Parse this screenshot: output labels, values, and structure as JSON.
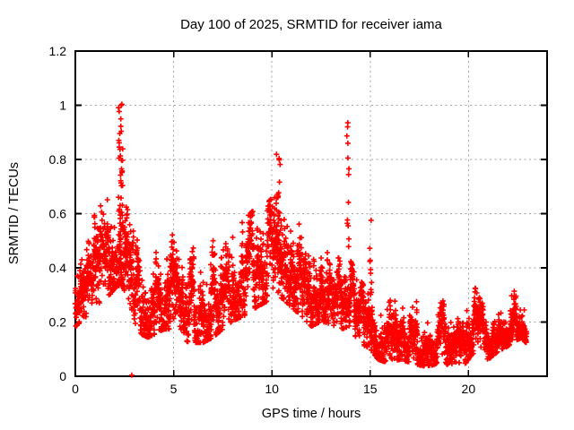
{
  "page": {
    "background": "#ffffff"
  },
  "chart_data": {
    "type": "scatter",
    "title": "Day 100 of 2025, SRMTID for receiver iama",
    "xlabel": "GPS time / hours",
    "ylabel": "SRMTID / TECUs",
    "xlim": [
      0,
      24
    ],
    "ylim": [
      0,
      1.2
    ],
    "xticks": [
      {
        "v": 0,
        "label": "0"
      },
      {
        "v": 5,
        "label": "5"
      },
      {
        "v": 10,
        "label": "10"
      },
      {
        "v": 15,
        "label": "15"
      },
      {
        "v": 20,
        "label": "20"
      }
    ],
    "yticks": [
      {
        "v": 0,
        "label": "0"
      },
      {
        "v": 0.2,
        "label": "0.2"
      },
      {
        "v": 0.4,
        "label": "0.4"
      },
      {
        "v": 0.6,
        "label": "0.6"
      },
      {
        "v": 0.8,
        "label": "0.8"
      },
      {
        "v": 1,
        "label": "1"
      },
      {
        "v": 1.2,
        "label": "1.2"
      }
    ],
    "grid": true,
    "legend": "none",
    "series_name": "SRMTID",
    "marker": {
      "shape": "plus",
      "color": "#ff0000",
      "size": 6,
      "stroke_width": 1.6
    },
    "frame_color": "#000000",
    "grid_color": "#a3a3a3",
    "envelope_points": [
      [
        0.0,
        0.18,
        0.45
      ],
      [
        0.3,
        0.2,
        0.42
      ],
      [
        0.6,
        0.22,
        0.5
      ],
      [
        1.0,
        0.25,
        0.6
      ],
      [
        1.4,
        0.28,
        0.64
      ],
      [
        1.8,
        0.3,
        0.66
      ],
      [
        2.1,
        0.33,
        0.63
      ],
      [
        2.4,
        0.33,
        0.63
      ],
      [
        2.8,
        0.26,
        0.67
      ],
      [
        3.1,
        0.18,
        0.55
      ],
      [
        3.4,
        0.15,
        0.48
      ],
      [
        3.7,
        0.14,
        0.43
      ],
      [
        4.0,
        0.15,
        0.45
      ],
      [
        4.5,
        0.17,
        0.48
      ],
      [
        5.0,
        0.17,
        0.5
      ],
      [
        5.4,
        0.14,
        0.4
      ],
      [
        5.8,
        0.12,
        0.42
      ],
      [
        6.1,
        0.12,
        0.5
      ],
      [
        6.5,
        0.12,
        0.46
      ],
      [
        7.0,
        0.14,
        0.5
      ],
      [
        7.5,
        0.17,
        0.52
      ],
      [
        8.0,
        0.2,
        0.55
      ],
      [
        8.6,
        0.22,
        0.58
      ],
      [
        9.2,
        0.25,
        0.62
      ],
      [
        9.7,
        0.27,
        0.64
      ],
      [
        10.1,
        0.3,
        0.66
      ],
      [
        10.6,
        0.28,
        0.65
      ],
      [
        11.0,
        0.25,
        0.6
      ],
      [
        11.5,
        0.22,
        0.55
      ],
      [
        12.0,
        0.18,
        0.5
      ],
      [
        12.5,
        0.2,
        0.48
      ],
      [
        13.0,
        0.19,
        0.46
      ],
      [
        13.5,
        0.17,
        0.43
      ],
      [
        13.9,
        0.18,
        0.44
      ],
      [
        14.3,
        0.14,
        0.38
      ],
      [
        14.7,
        0.11,
        0.33
      ],
      [
        15.0,
        0.1,
        0.35
      ],
      [
        15.4,
        0.06,
        0.28
      ],
      [
        15.8,
        0.05,
        0.25
      ],
      [
        16.1,
        0.05,
        0.29
      ],
      [
        16.5,
        0.06,
        0.27
      ],
      [
        17.0,
        0.05,
        0.24
      ],
      [
        17.4,
        0.04,
        0.28
      ],
      [
        17.8,
        0.035,
        0.22
      ],
      [
        18.2,
        0.04,
        0.18
      ],
      [
        18.5,
        0.05,
        0.33
      ],
      [
        19.0,
        0.04,
        0.2
      ],
      [
        19.4,
        0.05,
        0.24
      ],
      [
        19.8,
        0.04,
        0.2
      ],
      [
        20.2,
        0.08,
        0.35
      ],
      [
        20.5,
        0.08,
        0.3
      ],
      [
        21.0,
        0.06,
        0.22
      ],
      [
        21.5,
        0.09,
        0.25
      ],
      [
        22.0,
        0.11,
        0.28
      ],
      [
        22.4,
        0.13,
        0.32
      ],
      [
        22.7,
        0.14,
        0.33
      ],
      [
        22.95,
        0.12,
        0.28
      ]
    ],
    "spike_columns": [
      [
        2.3,
        0.1,
        0.45,
        1.01,
        34
      ],
      [
        2.38,
        0.04,
        0.5,
        0.88,
        8
      ],
      [
        4.95,
        0.05,
        0.25,
        0.53,
        10
      ],
      [
        10.32,
        0.1,
        0.42,
        0.82,
        20
      ],
      [
        13.87,
        0.05,
        0.44,
        0.95,
        14
      ],
      [
        15.02,
        0.05,
        0.28,
        0.585,
        9
      ]
    ],
    "special_points": [
      [
        2.87,
        0.004
      ]
    ],
    "gen": {
      "seed": 7,
      "t_start": 0,
      "t_end": 22.95,
      "step": 0.0125,
      "extra_point_probs": [
        0.65,
        0.4,
        0.2,
        0.08
      ]
    }
  }
}
